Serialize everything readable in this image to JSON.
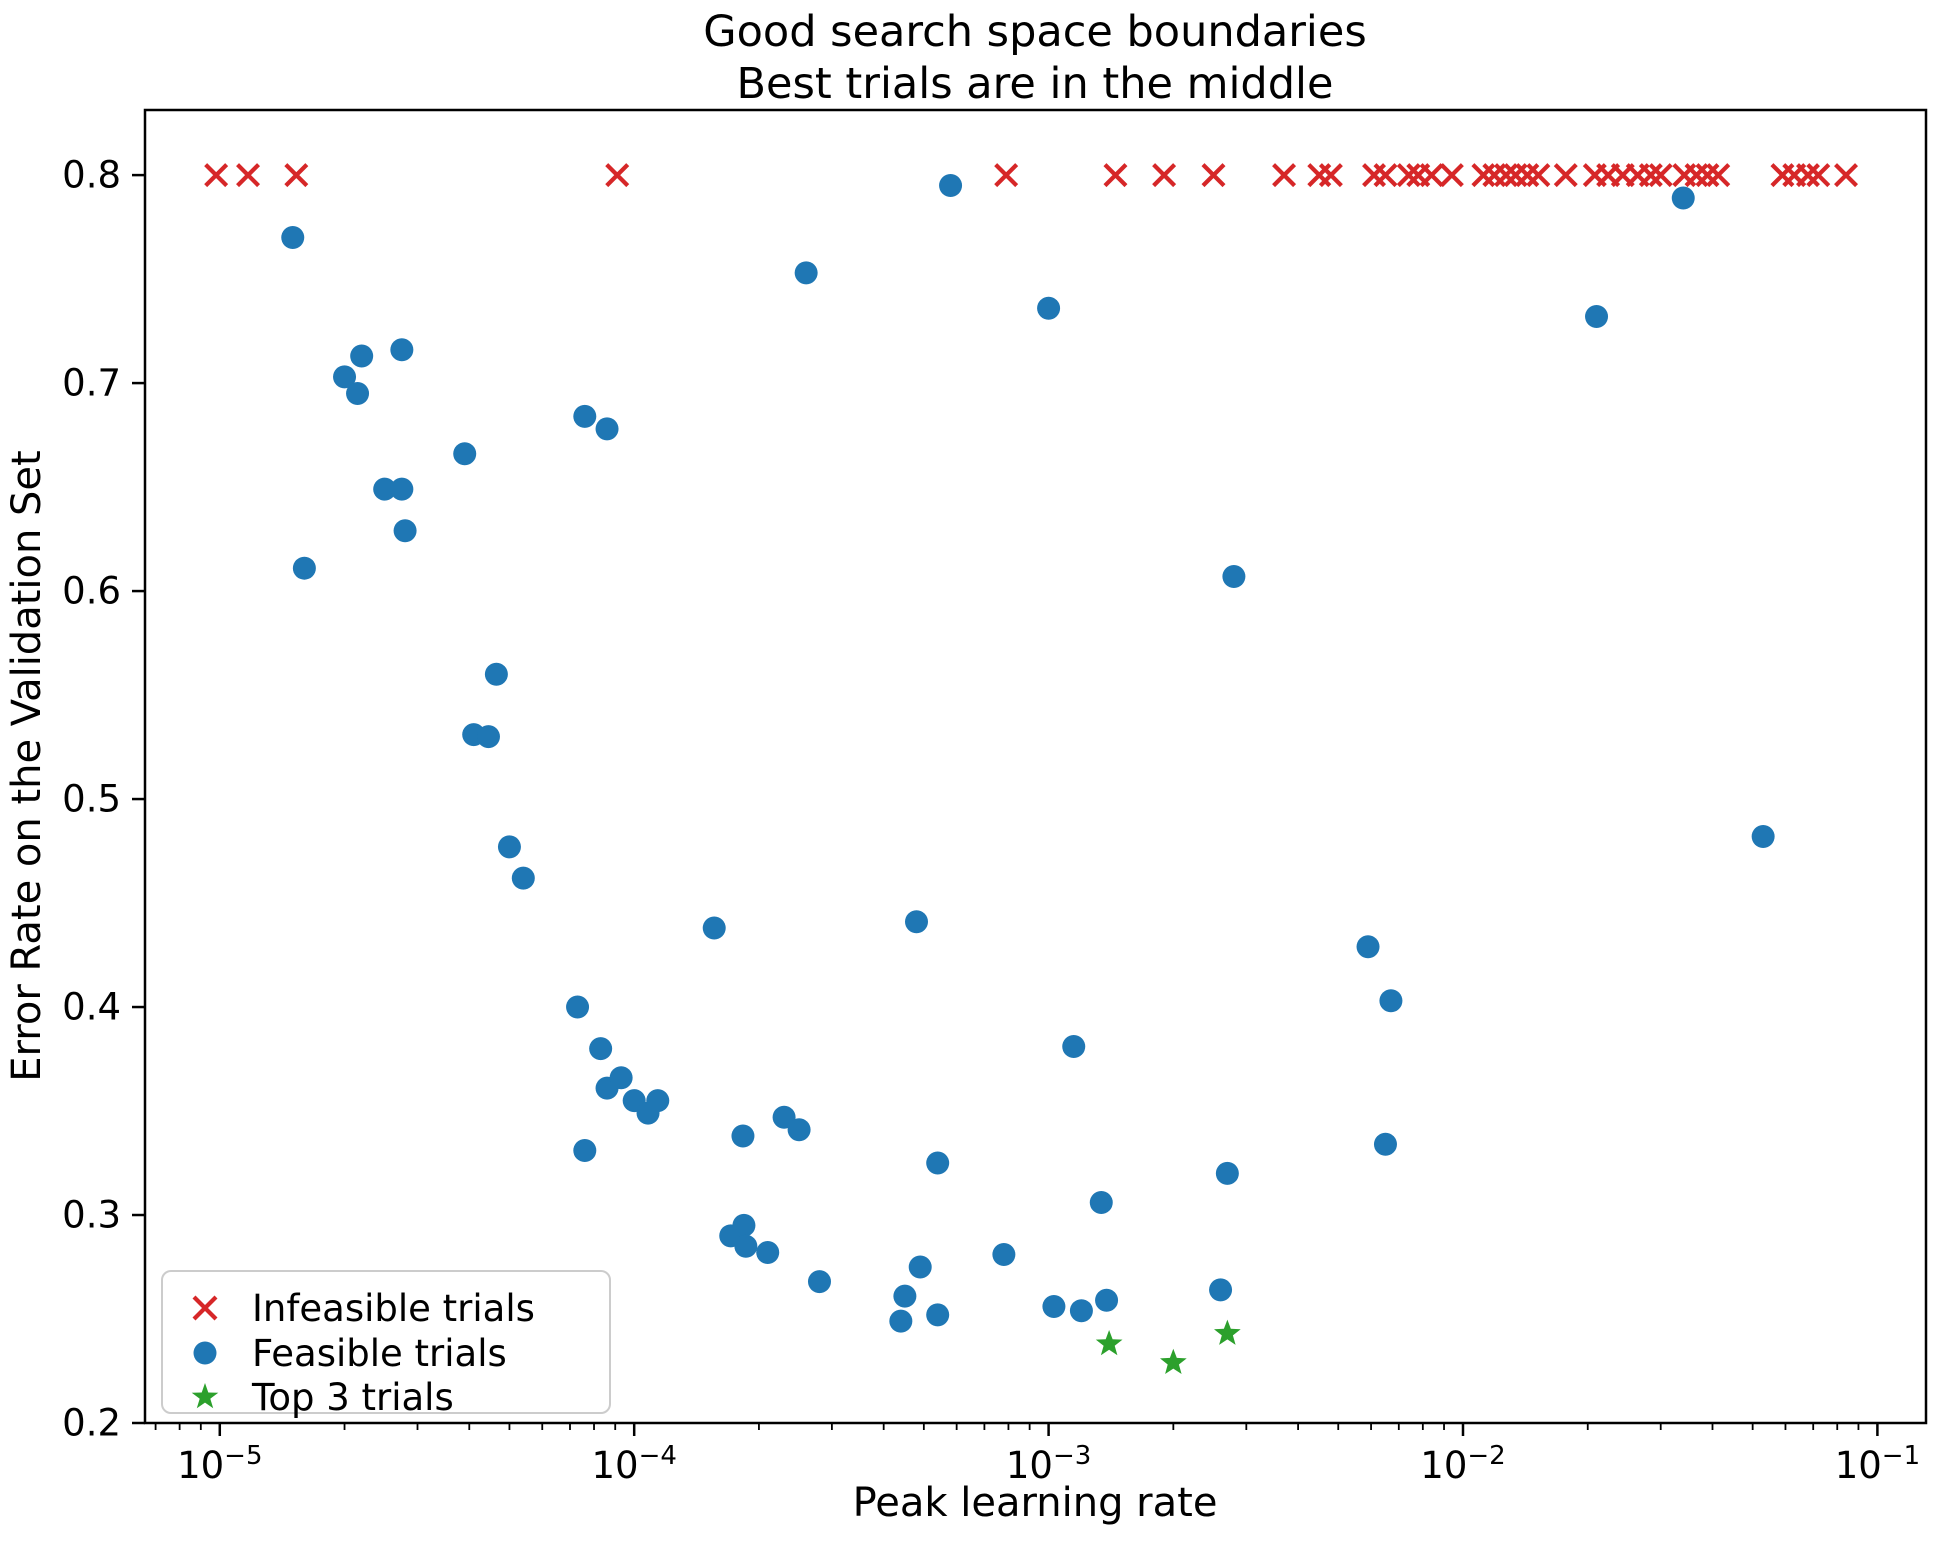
{
  "background": "#ffffff",
  "chart_data": {
    "type": "scatter",
    "title": "Good search space boundaries",
    "subtitle": "Best trials are in the middle",
    "xlabel": "Peak learning rate",
    "ylabel": "Error Rate on the Validation Set",
    "x_scale": "log",
    "xlim": [
      6.6e-06,
      0.131
    ],
    "ylim": [
      0.2,
      0.8313
    ],
    "grid": false,
    "legend_position": "lower left",
    "colors": {
      "infeasible": "#d62728",
      "feasible": "#1f77b4",
      "top3": "#2ca02c"
    },
    "x_ticks": [
      {
        "value": 1e-05,
        "base": "10",
        "exp": "−5"
      },
      {
        "value": 0.0001,
        "base": "10",
        "exp": "−4"
      },
      {
        "value": 0.001,
        "base": "10",
        "exp": "−3"
      },
      {
        "value": 0.01,
        "base": "10",
        "exp": "−2"
      },
      {
        "value": 0.1,
        "base": "10",
        "exp": "−1"
      }
    ],
    "y_ticks": [
      {
        "value": 0.2,
        "label": "0.2"
      },
      {
        "value": 0.3,
        "label": "0.3"
      },
      {
        "value": 0.4,
        "label": "0.4"
      },
      {
        "value": 0.5,
        "label": "0.5"
      },
      {
        "value": 0.6,
        "label": "0.6"
      },
      {
        "value": 0.7,
        "label": "0.7"
      },
      {
        "value": 0.8,
        "label": "0.8"
      }
    ],
    "legend": [
      {
        "label": "Infeasible trials",
        "marker": "x",
        "color_key": "infeasible"
      },
      {
        "label": "Feasible trials",
        "marker": "circle",
        "color_key": "feasible"
      },
      {
        "label": "Top 3 trials",
        "marker": "star",
        "color_key": "top3"
      }
    ],
    "series": [
      {
        "name": "Infeasible trials",
        "marker": "x",
        "color_key": "infeasible",
        "points": [
          [
            9.8e-06,
            0.8
          ],
          [
            1.17e-05,
            0.8
          ],
          [
            1.53e-05,
            0.8
          ],
          [
            9.1e-05,
            0.8
          ],
          [
            0.00079,
            0.8
          ],
          [
            0.00145,
            0.8
          ],
          [
            0.0019,
            0.8
          ],
          [
            0.0025,
            0.8
          ],
          [
            0.0037,
            0.8
          ],
          [
            0.0045,
            0.8
          ],
          [
            0.0048,
            0.8
          ],
          [
            0.0061,
            0.8
          ],
          [
            0.0065,
            0.8
          ],
          [
            0.0074,
            0.8
          ],
          [
            0.0078,
            0.8
          ],
          [
            0.0084,
            0.8
          ],
          [
            0.0094,
            0.8
          ],
          [
            0.0112,
            0.8
          ],
          [
            0.0119,
            0.8
          ],
          [
            0.0127,
            0.8
          ],
          [
            0.0134,
            0.8
          ],
          [
            0.0143,
            0.8
          ],
          [
            0.0152,
            0.8
          ],
          [
            0.0177,
            0.8
          ],
          [
            0.0208,
            0.8
          ],
          [
            0.0224,
            0.8
          ],
          [
            0.0243,
            0.8
          ],
          [
            0.0264,
            0.8
          ],
          [
            0.0284,
            0.8
          ],
          [
            0.03,
            0.8
          ],
          [
            0.0342,
            0.8
          ],
          [
            0.0366,
            0.8
          ],
          [
            0.0389,
            0.8
          ],
          [
            0.0413,
            0.8
          ],
          [
            0.059,
            0.8
          ],
          [
            0.063,
            0.8
          ],
          [
            0.068,
            0.8
          ],
          [
            0.072,
            0.8
          ],
          [
            0.084,
            0.8
          ]
        ]
      },
      {
        "name": "Feasible trials",
        "marker": "circle",
        "color_key": "feasible",
        "points": [
          [
            1.5e-05,
            0.77
          ],
          [
            1.6e-05,
            0.611
          ],
          [
            2e-05,
            0.703
          ],
          [
            2.15e-05,
            0.695
          ],
          [
            2.2e-05,
            0.713
          ],
          [
            2.5e-05,
            0.649
          ],
          [
            2.75e-05,
            0.716
          ],
          [
            2.75e-05,
            0.649
          ],
          [
            2.8e-05,
            0.629
          ],
          [
            3.9e-05,
            0.666
          ],
          [
            4.1e-05,
            0.531
          ],
          [
            4.45e-05,
            0.53
          ],
          [
            4.65e-05,
            0.56
          ],
          [
            5e-05,
            0.477
          ],
          [
            5.4e-05,
            0.462
          ],
          [
            7.3e-05,
            0.4
          ],
          [
            7.6e-05,
            0.684
          ],
          [
            7.6e-05,
            0.331
          ],
          [
            8.3e-05,
            0.38
          ],
          [
            8.6e-05,
            0.678
          ],
          [
            8.6e-05,
            0.361
          ],
          [
            9.3e-05,
            0.366
          ],
          [
            0.0001,
            0.355
          ],
          [
            0.000108,
            0.349
          ],
          [
            0.000114,
            0.355
          ],
          [
            0.000156,
            0.438
          ],
          [
            0.000171,
            0.29
          ],
          [
            0.000183,
            0.338
          ],
          [
            0.000184,
            0.295
          ],
          [
            0.000186,
            0.285
          ],
          [
            0.00021,
            0.282
          ],
          [
            0.00023,
            0.347
          ],
          [
            0.00025,
            0.341
          ],
          [
            0.00026,
            0.753
          ],
          [
            0.00028,
            0.268
          ],
          [
            0.00044,
            0.249
          ],
          [
            0.00045,
            0.261
          ],
          [
            0.00048,
            0.441
          ],
          [
            0.00049,
            0.275
          ],
          [
            0.00054,
            0.325
          ],
          [
            0.00054,
            0.252
          ],
          [
            0.00058,
            0.795
          ],
          [
            0.00078,
            0.281
          ],
          [
            0.001,
            0.736
          ],
          [
            0.00103,
            0.256
          ],
          [
            0.00115,
            0.381
          ],
          [
            0.0012,
            0.254
          ],
          [
            0.00134,
            0.306
          ],
          [
            0.00138,
            0.259
          ],
          [
            0.0026,
            0.264
          ],
          [
            0.0027,
            0.32
          ],
          [
            0.0028,
            0.607
          ],
          [
            0.0059,
            0.429
          ],
          [
            0.0065,
            0.334
          ],
          [
            0.0067,
            0.403
          ],
          [
            0.021,
            0.732
          ],
          [
            0.034,
            0.789
          ],
          [
            0.053,
            0.482
          ]
        ]
      },
      {
        "name": "Top 3 trials",
        "marker": "star",
        "color_key": "top3",
        "points": [
          [
            0.0014,
            0.238
          ],
          [
            0.002,
            0.229
          ],
          [
            0.0027,
            0.243
          ]
        ]
      }
    ]
  }
}
